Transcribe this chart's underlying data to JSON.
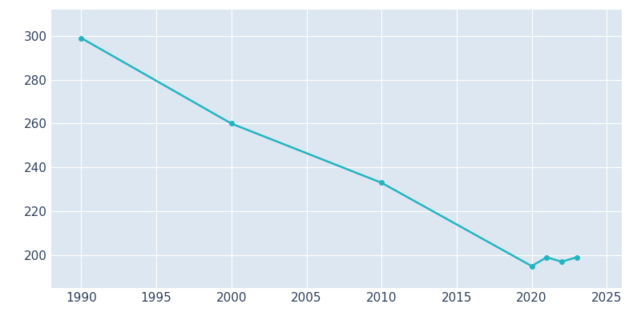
{
  "years": [
    1990,
    2000,
    2010,
    2020,
    2021,
    2022,
    2023
  ],
  "population": [
    299,
    260,
    233,
    195,
    199,
    197,
    199
  ],
  "line_color": "#22b5c0",
  "marker_color": "#22b5c0",
  "axes_background_color": "#dce7f1",
  "figure_background_color": "#ffffff",
  "grid_color": "#ffffff",
  "xlim": [
    1988,
    2026
  ],
  "ylim": [
    185,
    312
  ],
  "xticks": [
    1990,
    1995,
    2000,
    2005,
    2010,
    2015,
    2020,
    2025
  ],
  "yticks": [
    200,
    220,
    240,
    260,
    280,
    300
  ],
  "tick_label_color": "#2e3f5c",
  "tick_fontsize": 11
}
